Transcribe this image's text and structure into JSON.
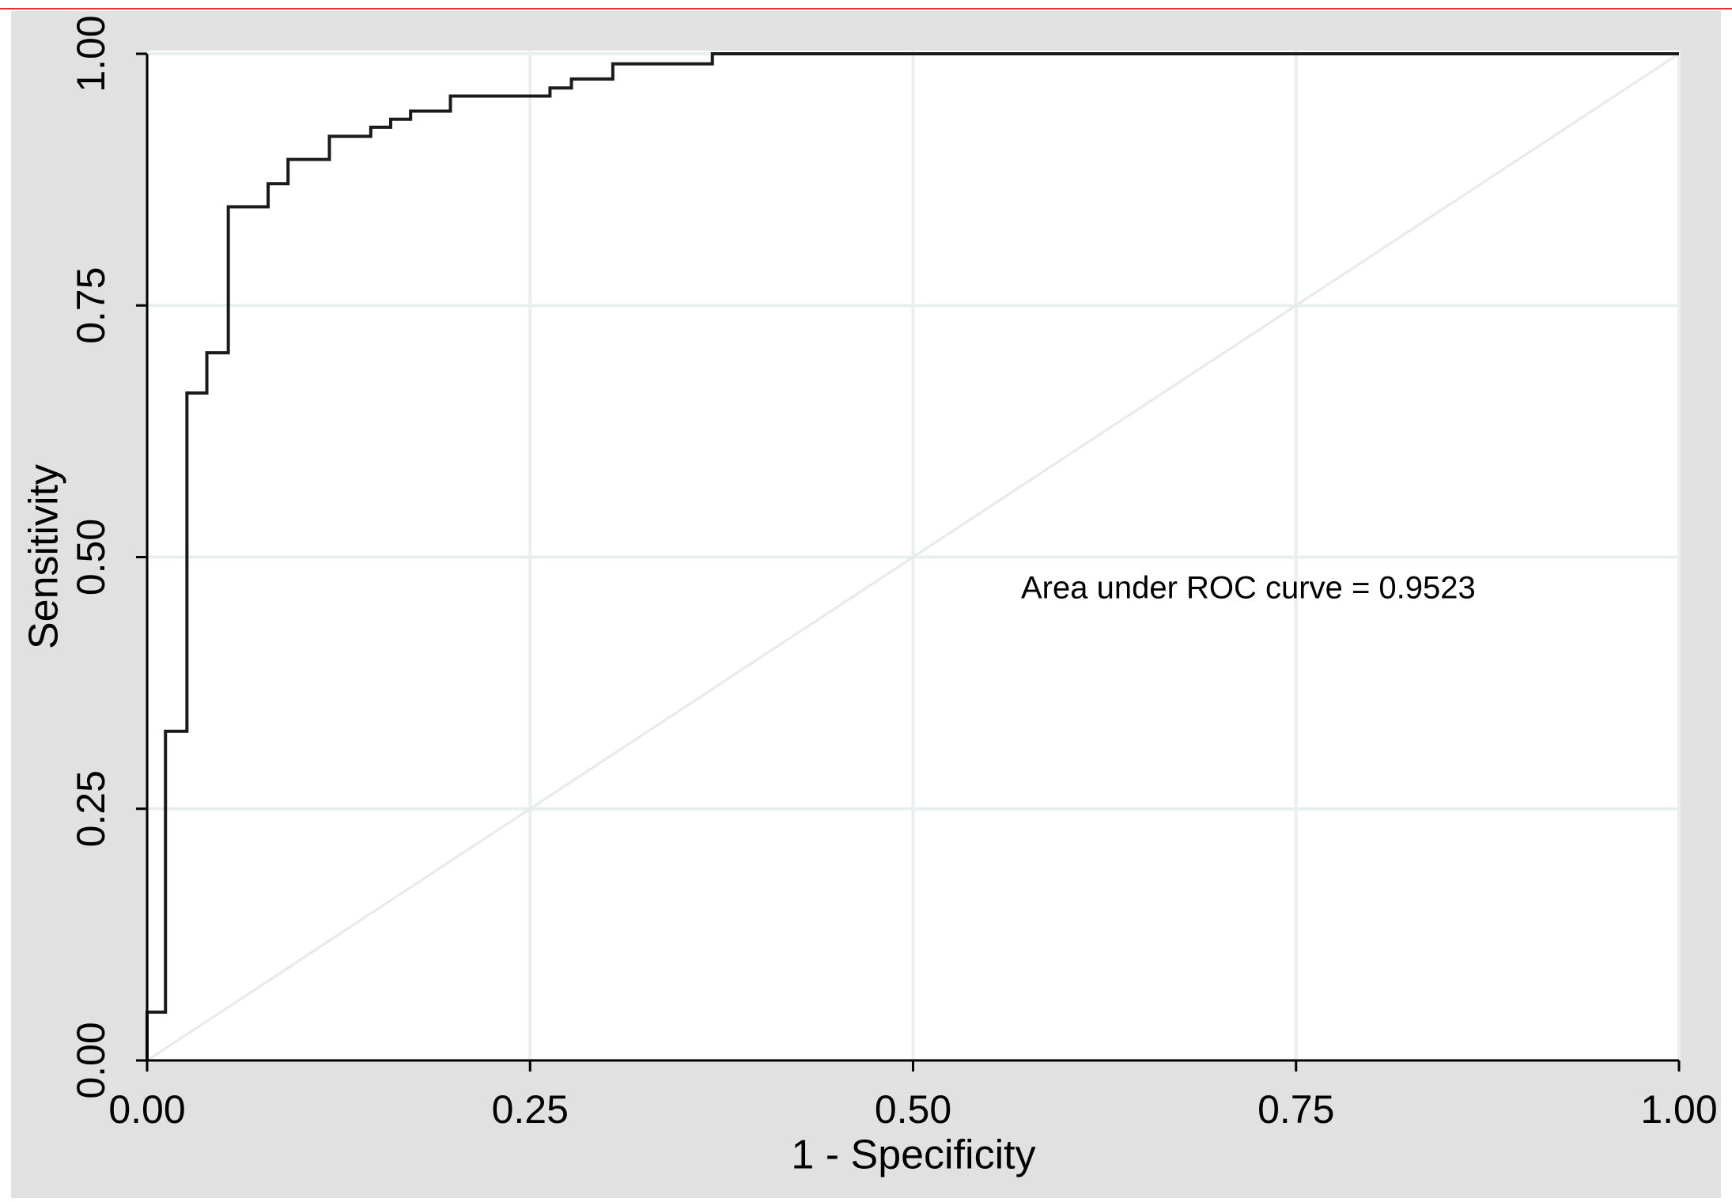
{
  "chart_data": {
    "type": "line",
    "xlabel": "1 - Specificity",
    "ylabel": "Sensitivity",
    "annotation": "Area under ROC curve = 0.9523",
    "series": [
      {
        "color": "#1a1a1a",
        "x": [
          0,
          0,
          0.012,
          0.012,
          0.026,
          0.026,
          0.039,
          0.039,
          0.053,
          0.053,
          0.079,
          0.079,
          0.092,
          0.092,
          0.119,
          0.119,
          0.146,
          0.146,
          0.159,
          0.159,
          0.172,
          0.172,
          0.198,
          0.198,
          0.263,
          0.263,
          0.277,
          0.277,
          0.304,
          0.304,
          0.369,
          0.369,
          1
        ],
        "values": [
          0,
          0.048,
          0.048,
          0.327,
          0.327,
          0.663,
          0.663,
          0.703,
          0.703,
          0.848,
          0.848,
          0.871,
          0.871,
          0.895,
          0.895,
          0.918,
          0.918,
          0.927,
          0.927,
          0.935,
          0.935,
          0.943,
          0.943,
          0.958,
          0.958,
          0.966,
          0.966,
          0.975,
          0.975,
          0.99,
          0.99,
          1,
          1
        ]
      }
    ],
    "reference_line": {
      "x": [
        0,
        1
      ],
      "values": [
        0,
        1
      ],
      "color": "#e6eaea"
    },
    "xlim": [
      0,
      1
    ],
    "ylim": [
      0,
      1
    ],
    "xticks": [
      {
        "value": 0,
        "label": "0.00"
      },
      {
        "value": 0.25,
        "label": "0.25"
      },
      {
        "value": 0.5,
        "label": "0.50"
      },
      {
        "value": 0.75,
        "label": "0.75"
      },
      {
        "value": 1,
        "label": "1.00"
      }
    ],
    "yticks": [
      {
        "value": 0,
        "label": "0.00"
      },
      {
        "value": 0.25,
        "label": "0.25"
      },
      {
        "value": 0.5,
        "label": "0.50"
      },
      {
        "value": 0.75,
        "label": "0.75"
      },
      {
        "value": 1,
        "label": "1.00"
      }
    ],
    "grid": true
  }
}
